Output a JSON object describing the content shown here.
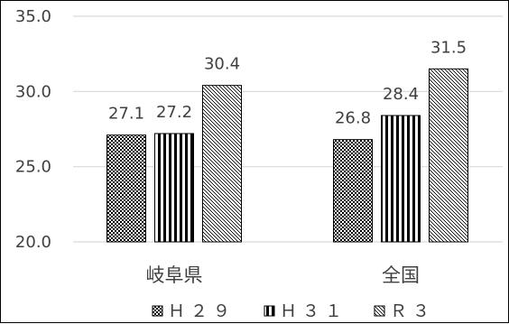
{
  "chart_data": {
    "type": "bar",
    "title": "",
    "xlabel": "",
    "ylabel": "",
    "ylim": [
      20.0,
      35.0
    ],
    "yticks": [
      "35.0",
      "30.0",
      "25.0",
      "20.0"
    ],
    "grid": true,
    "legend_position": "bottom",
    "categories": [
      "岐阜県",
      "全国"
    ],
    "series": [
      {
        "name": "Ｈ２９",
        "values": [
          27.1,
          26.8
        ],
        "labels": [
          "27.1",
          "26.8"
        ],
        "pattern": "checker"
      },
      {
        "name": "Ｈ３１",
        "values": [
          27.2,
          28.4
        ],
        "labels": [
          "27.2",
          "28.4"
        ],
        "pattern": "vertical-stripes"
      },
      {
        "name": "Ｒ３",
        "values": [
          30.4,
          31.5
        ],
        "labels": [
          "30.4",
          "31.5"
        ],
        "pattern": "diagonal-dots"
      }
    ],
    "colors": {
      "bar_pattern": "#000000",
      "text": "#404040",
      "gridline": "#d9d9d9",
      "border": "#000000"
    }
  }
}
